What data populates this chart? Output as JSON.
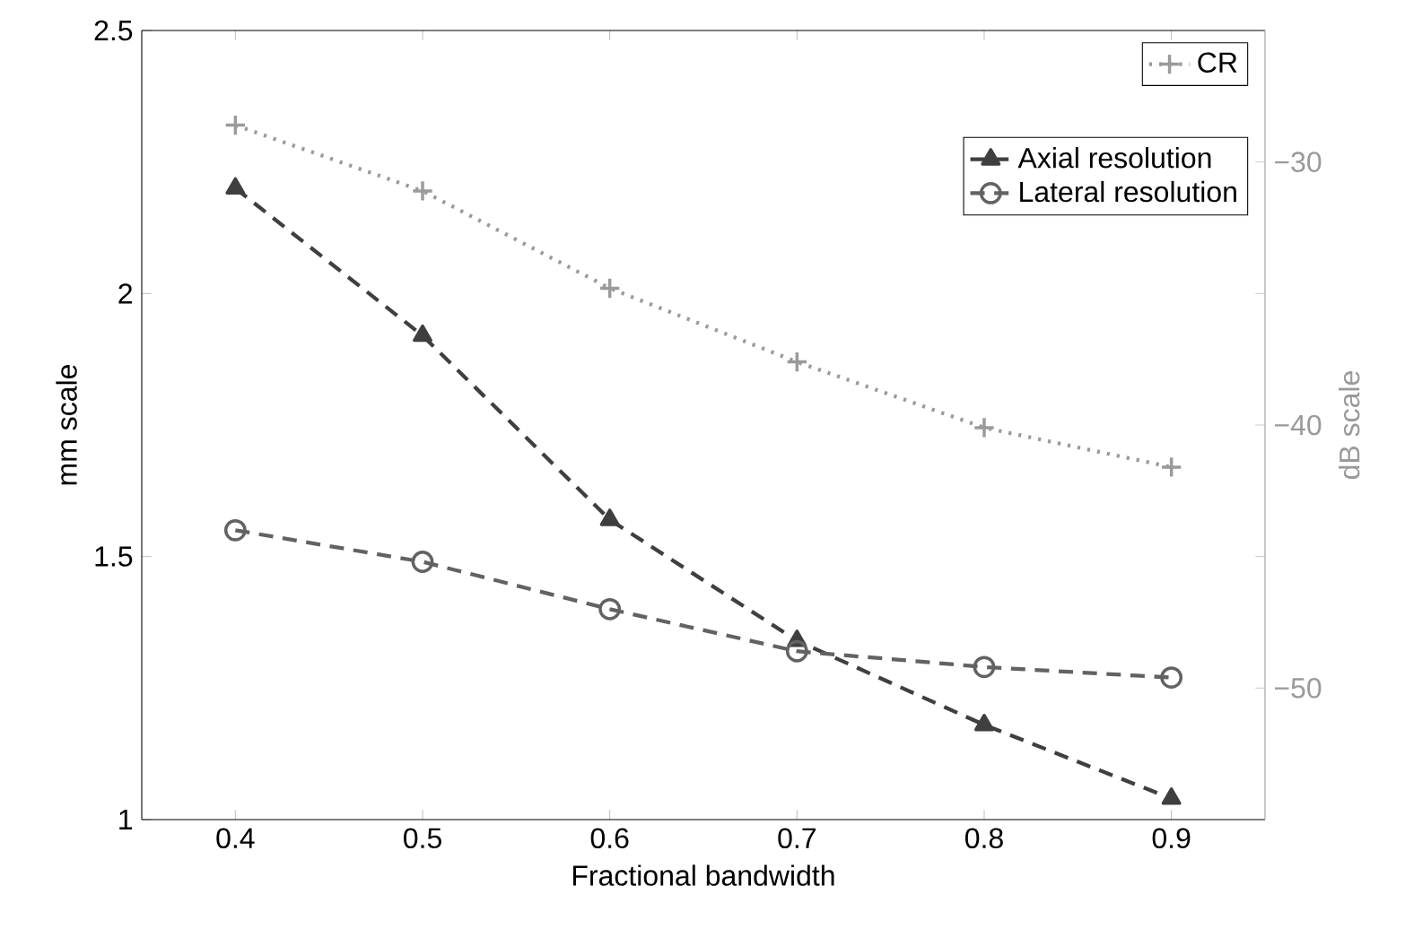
{
  "chart_data": {
    "type": "line",
    "xlabel": "Fractional bandwidth",
    "ylabel": "mm scale",
    "y2label": "dB scale",
    "x": [
      0.4,
      0.5,
      0.6,
      0.7,
      0.8,
      0.9
    ],
    "xlim": [
      0.35,
      0.95
    ],
    "xticks": [
      0.4,
      0.5,
      0.6,
      0.7,
      0.8,
      0.9
    ],
    "ylim": [
      1,
      2.5
    ],
    "yticks": [
      1,
      1.5,
      2,
      2.5
    ],
    "y2lim": [
      -55,
      -25
    ],
    "y2ticks": [
      {
        "value": -50,
        "label": "−50"
      },
      {
        "value": -45,
        "label": null
      },
      {
        "value": -40,
        "label": "−40"
      },
      {
        "value": -35,
        "label": null
      },
      {
        "value": -30,
        "label": "−30"
      }
    ],
    "legend": "top right",
    "series": [
      {
        "name": "Axial resolution",
        "color": "#3f3f3f",
        "marker": "triangle",
        "line_style": "dashed",
        "values": [
          2.2,
          1.92,
          1.57,
          1.34,
          1.18,
          1.04
        ]
      },
      {
        "name": "Lateral resolution",
        "color": "#626262",
        "marker": "circle",
        "line_style": "dashed",
        "values": [
          1.55,
          1.49,
          1.4,
          1.32,
          1.29,
          1.27
        ]
      },
      {
        "name": "CR",
        "color": "#9a9a9a",
        "marker": "cross",
        "line_style": "dotted",
        "axis": "y2",
        "values": [
          -28.6,
          -31.1,
          -34.8,
          -37.6,
          -40.1,
          -41.6
        ]
      }
    ]
  }
}
